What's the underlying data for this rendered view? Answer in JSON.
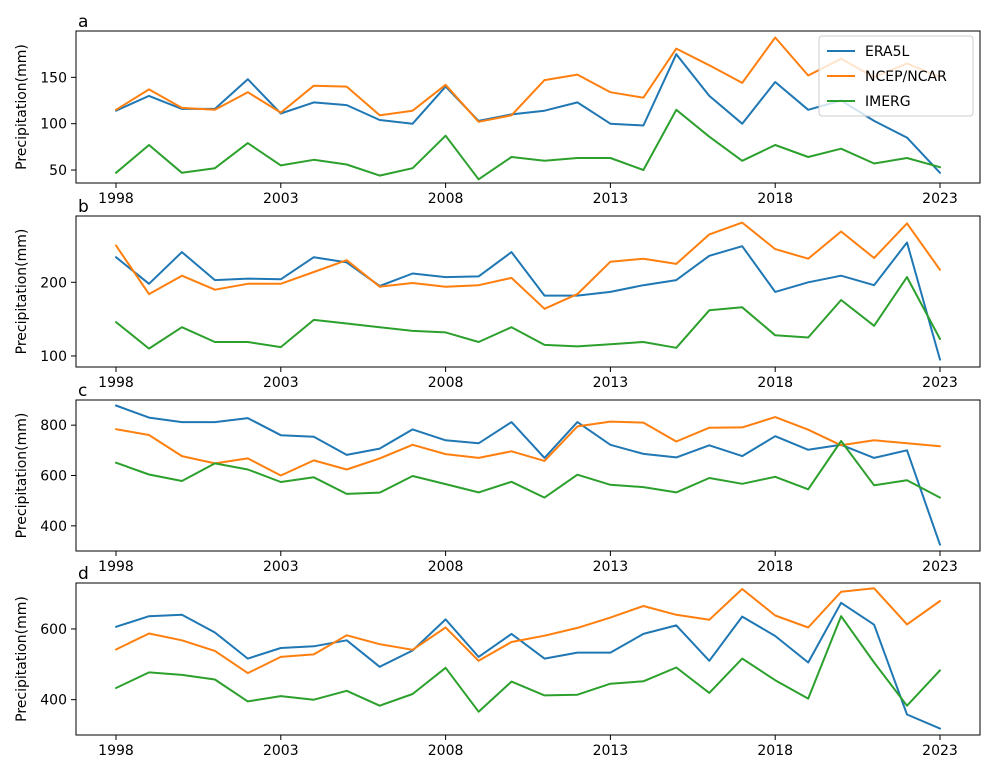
{
  "chart_data": [
    {
      "type": "line",
      "panel_label": "a",
      "ylabel": "Precipitation(mm)",
      "ylim": [
        36,
        200
      ],
      "yticks": [
        50,
        100,
        150
      ],
      "xticks": [
        1998,
        2003,
        2008,
        2013,
        2018,
        2023
      ],
      "legend": true,
      "legend_position": "top-right",
      "x": [
        1998,
        1999,
        2000,
        2001,
        2002,
        2003,
        2004,
        2005,
        2006,
        2007,
        2008,
        2009,
        2010,
        2011,
        2012,
        2013,
        2014,
        2015,
        2016,
        2017,
        2018,
        2019,
        2020,
        2021,
        2022,
        2023
      ],
      "series": [
        {
          "name": "ERA5L",
          "color": "#1f77b4",
          "values": [
            114,
            130,
            116,
            116,
            148,
            111,
            123,
            120,
            104,
            100,
            140,
            103,
            110,
            114,
            123,
            100,
            98,
            175,
            130,
            100,
            145,
            115,
            125,
            103,
            85,
            47
          ]
        },
        {
          "name": "NCEP/NCAR",
          "color": "#ff7f0e",
          "values": [
            115,
            137,
            117,
            115,
            134,
            112,
            141,
            140,
            109,
            114,
            142,
            102,
            109,
            147,
            153,
            134,
            128,
            181,
            163,
            144,
            193,
            152,
            170,
            150,
            165,
            150
          ]
        },
        {
          "name": "IMERG",
          "color": "#2ca02c",
          "values": [
            47,
            77,
            47,
            52,
            79,
            55,
            61,
            56,
            44,
            52,
            87,
            40,
            64,
            60,
            63,
            63,
            50,
            115,
            86,
            60,
            77,
            64,
            73,
            57,
            63,
            53
          ]
        }
      ]
    },
    {
      "type": "line",
      "panel_label": "b",
      "ylabel": "Precipitation(mm)",
      "ylim": [
        85,
        290
      ],
      "yticks": [
        100,
        200
      ],
      "xticks": [
        1998,
        2003,
        2008,
        2013,
        2018,
        2023
      ],
      "legend": false,
      "x": [
        1998,
        1999,
        2000,
        2001,
        2002,
        2003,
        2004,
        2005,
        2006,
        2007,
        2008,
        2009,
        2010,
        2011,
        2012,
        2013,
        2014,
        2015,
        2016,
        2017,
        2018,
        2019,
        2020,
        2021,
        2022,
        2023
      ],
      "series": [
        {
          "name": "ERA5L",
          "color": "#1f77b4",
          "values": [
            234,
            198,
            241,
            203,
            205,
            204,
            234,
            227,
            195,
            212,
            207,
            208,
            241,
            182,
            182,
            187,
            196,
            203,
            236,
            249,
            187,
            200,
            209,
            196,
            254,
            95
          ]
        },
        {
          "name": "NCEP/NCAR",
          "color": "#ff7f0e",
          "values": [
            250,
            184,
            209,
            190,
            198,
            198,
            214,
            230,
            194,
            199,
            194,
            196,
            206,
            164,
            184,
            228,
            232,
            225,
            265,
            281,
            245,
            232,
            269,
            233,
            280,
            217
          ]
        },
        {
          "name": "IMERG",
          "color": "#2ca02c",
          "values": [
            146,
            110,
            139,
            119,
            119,
            112,
            149,
            144,
            139,
            134,
            132,
            119,
            139,
            115,
            113,
            116,
            119,
            111,
            162,
            166,
            128,
            125,
            176,
            141,
            207,
            123
          ]
        }
      ]
    },
    {
      "type": "line",
      "panel_label": "c",
      "ylabel": "Precipitation(mm)",
      "ylim": [
        300,
        900
      ],
      "yticks": [
        400,
        600,
        800
      ],
      "xticks": [
        1998,
        2003,
        2008,
        2013,
        2018,
        2023
      ],
      "legend": false,
      "x": [
        1998,
        1999,
        2000,
        2001,
        2002,
        2003,
        2004,
        2005,
        2006,
        2007,
        2008,
        2009,
        2010,
        2011,
        2012,
        2013,
        2014,
        2015,
        2016,
        2017,
        2018,
        2019,
        2020,
        2021,
        2022,
        2023
      ],
      "series": [
        {
          "name": "ERA5L",
          "color": "#1f77b4",
          "values": [
            878,
            830,
            812,
            812,
            828,
            760,
            754,
            682,
            707,
            783,
            740,
            728,
            812,
            670,
            812,
            722,
            686,
            672,
            720,
            677,
            756,
            702,
            722,
            670,
            700,
            325
          ]
        },
        {
          "name": "NCEP/NCAR",
          "color": "#ff7f0e",
          "values": [
            784,
            761,
            677,
            648,
            668,
            600,
            660,
            624,
            668,
            722,
            685,
            670,
            696,
            658,
            795,
            814,
            810,
            735,
            790,
            791,
            832,
            782,
            720,
            740,
            728,
            716
          ]
        },
        {
          "name": "IMERG",
          "color": "#2ca02c",
          "values": [
            651,
            604,
            578,
            648,
            624,
            574,
            593,
            527,
            532,
            598,
            566,
            533,
            575,
            512,
            603,
            563,
            554,
            533,
            590,
            567,
            595,
            545,
            737,
            561,
            581,
            512
          ]
        }
      ]
    },
    {
      "type": "line",
      "panel_label": "d",
      "ylabel": "Precipitation(mm)",
      "ylim": [
        300,
        730
      ],
      "yticks": [
        400,
        600
      ],
      "xticks": [
        1998,
        2003,
        2008,
        2013,
        2018,
        2023
      ],
      "legend": false,
      "x": [
        1998,
        1999,
        2000,
        2001,
        2002,
        2003,
        2004,
        2005,
        2006,
        2007,
        2008,
        2009,
        2010,
        2011,
        2012,
        2013,
        2014,
        2015,
        2016,
        2017,
        2018,
        2019,
        2020,
        2021,
        2022,
        2023
      ],
      "series": [
        {
          "name": "ERA5L",
          "color": "#1f77b4",
          "values": [
            606,
            636,
            640,
            590,
            516,
            546,
            551,
            568,
            493,
            539,
            627,
            521,
            586,
            516,
            533,
            533,
            586,
            610,
            510,
            635,
            580,
            505,
            674,
            612,
            358,
            318
          ]
        },
        {
          "name": "NCEP/NCAR",
          "color": "#ff7f0e",
          "values": [
            542,
            587,
            568,
            538,
            475,
            521,
            528,
            582,
            557,
            541,
            604,
            510,
            563,
            581,
            603,
            632,
            665,
            640,
            626,
            713,
            638,
            604,
            705,
            715,
            613,
            679
          ]
        },
        {
          "name": "IMERG",
          "color": "#2ca02c",
          "values": [
            433,
            477,
            470,
            457,
            395,
            410,
            400,
            425,
            383,
            416,
            490,
            366,
            451,
            412,
            414,
            445,
            452,
            491,
            419,
            516,
            455,
            403,
            636,
            505,
            383,
            483
          ]
        }
      ]
    }
  ]
}
